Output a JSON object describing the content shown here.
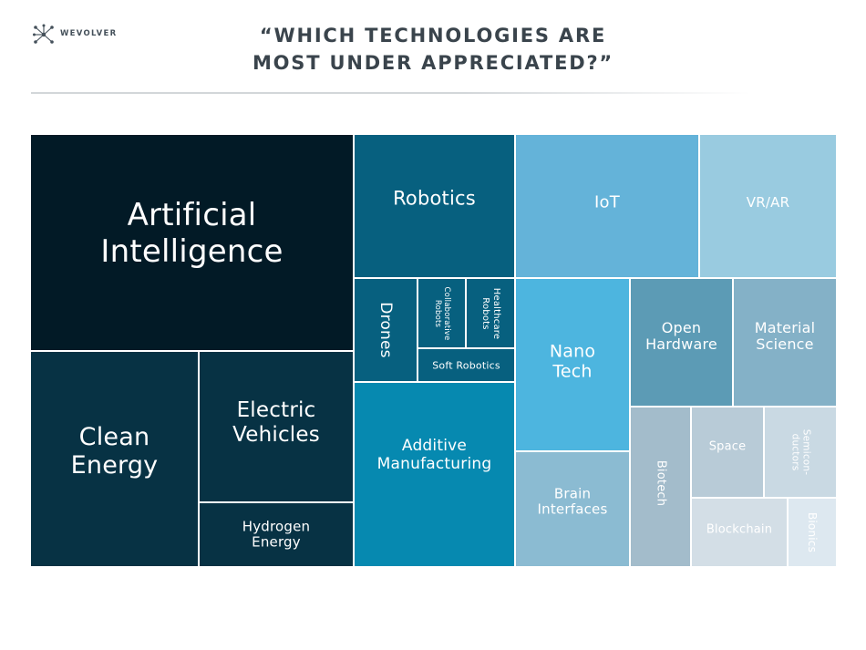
{
  "brand": {
    "name": "WEVOLVER",
    "icon": "network-logo-icon"
  },
  "title": {
    "line1": "“WHICH TECHNOLOGIES ARE",
    "line2": "MOST UNDER APPRECIATED?”"
  },
  "chart_data": {
    "type": "treemap",
    "categories": [
      "Artificial Intelligence",
      "Clean Energy",
      "Electric Vehicles",
      "Hydrogen Energy",
      "Robotics",
      "Drones",
      "Collaborative Robots",
      "Healthcare Robots",
      "Soft Robotics",
      "Additive Manufacturing",
      "IoT",
      "VR/AR",
      "Nano Tech",
      "Open Hardware",
      "Material Science",
      "Brain Interfaces",
      "Biotech",
      "Space",
      "Semiconductors",
      "Blockchain",
      "Bionics"
    ],
    "tiles": [
      {
        "label": "Artificial\nIntelligence",
        "color": "#021a26"
      },
      {
        "label": "Clean\nEnergy",
        "color": "#073244"
      },
      {
        "label": "Electric\nVehicles",
        "color": "#073244"
      },
      {
        "label": "Hydrogen\nEnergy",
        "color": "#073244"
      },
      {
        "label": "Robotics",
        "color": "#07607f"
      },
      {
        "label": "Drones",
        "color": "#07607f"
      },
      {
        "label": "Collaborative\nRobots",
        "color": "#07607f"
      },
      {
        "label": "Healthcare\nRobots",
        "color": "#07607f"
      },
      {
        "label": "Soft Robotics",
        "color": "#07607f"
      },
      {
        "label": "Additive\nManufacturing",
        "color": "#0689b0"
      },
      {
        "label": "IoT",
        "color": "#64b3d9"
      },
      {
        "label": "VR/AR",
        "color": "#99cbe0"
      },
      {
        "label": "Nano\nTech",
        "color": "#4db5df"
      },
      {
        "label": "Open\nHardware",
        "color": "#5c9bb5"
      },
      {
        "label": "Material\nScience",
        "color": "#84b1c7"
      },
      {
        "label": "Brain\nInterfaces",
        "color": "#8bbbd2"
      },
      {
        "label": "Biotech",
        "color": "#a3bccb"
      },
      {
        "label": "Space",
        "color": "#b8cbd7"
      },
      {
        "label": "Semicon-\nductors",
        "color": "#c9d9e3"
      },
      {
        "label": "Blockchain",
        "color": "#d3dee6"
      },
      {
        "label": "Bionics",
        "color": "#dde8f0"
      }
    ]
  }
}
